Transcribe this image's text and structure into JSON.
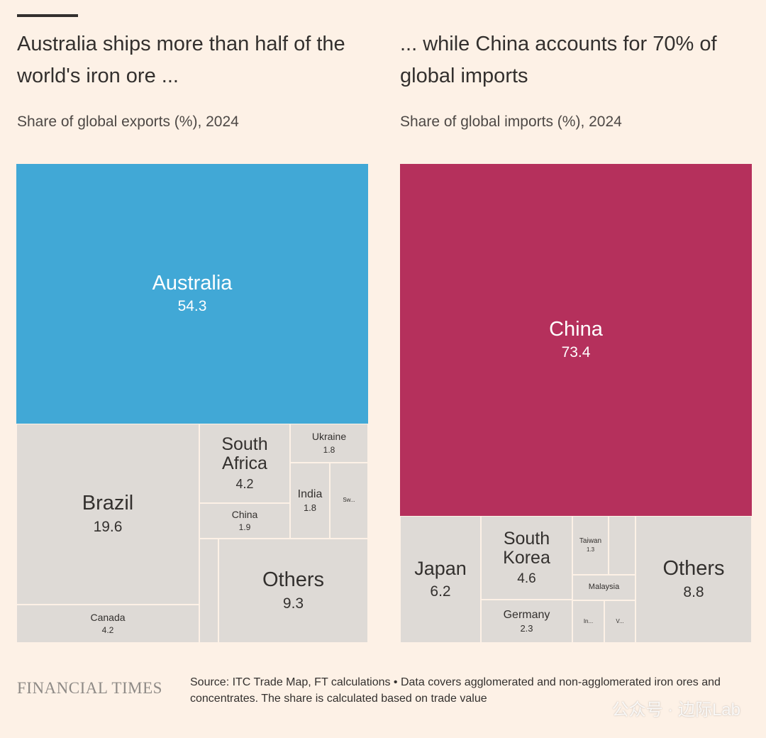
{
  "header": {
    "left_title": "Australia ships more than half of the world's iron ore ...",
    "left_subtitle": "Share of global exports (%), 2024",
    "right_title": "... while China accounts for 70% of global imports",
    "right_subtitle": "Share of global imports (%), 2024"
  },
  "colors": {
    "highlight_exports": "#41a8d6",
    "highlight_imports": "#b5305c",
    "grey": "#dedad6",
    "background": "#fdf1e6"
  },
  "chart_data": [
    {
      "type": "treemap",
      "title": "Share of global exports (%), 2024",
      "items": [
        {
          "name": "Australia",
          "value": "54.3",
          "highlight": true
        },
        {
          "name": "Brazil",
          "value": "19.6"
        },
        {
          "name": "Canada",
          "value": "4.2"
        },
        {
          "name": "South Africa",
          "value": "4.2"
        },
        {
          "name": "China",
          "value": "1.9"
        },
        {
          "name": "Ukraine",
          "value": "1.8"
        },
        {
          "name": "India",
          "value": "1.8"
        },
        {
          "name": "Sw...",
          "value": ""
        },
        {
          "name": "",
          "value": ""
        },
        {
          "name": "Others",
          "value": "9.3"
        }
      ]
    },
    {
      "type": "treemap",
      "title": "Share of global imports (%), 2024",
      "items": [
        {
          "name": "China",
          "value": "73.4",
          "highlight": true
        },
        {
          "name": "Japan",
          "value": "6.2"
        },
        {
          "name": "South Korea",
          "value": "4.6"
        },
        {
          "name": "Germany",
          "value": "2.3"
        },
        {
          "name": "Taiwan",
          "value": "1.3"
        },
        {
          "name": "",
          "value": ""
        },
        {
          "name": "Malaysia",
          "value": ""
        },
        {
          "name": "In...",
          "value": ""
        },
        {
          "name": "V...",
          "value": ""
        },
        {
          "name": "Others",
          "value": "8.8"
        }
      ]
    }
  ],
  "footer": {
    "brand": "FINANCIAL TIMES",
    "source": "Source: ITC Trade Map, FT calculations • Data covers agglomerated and non-agglomerated iron ores and concentrates. The share is calculated based on trade value",
    "watermark": "公众号 · 边际Lab"
  }
}
